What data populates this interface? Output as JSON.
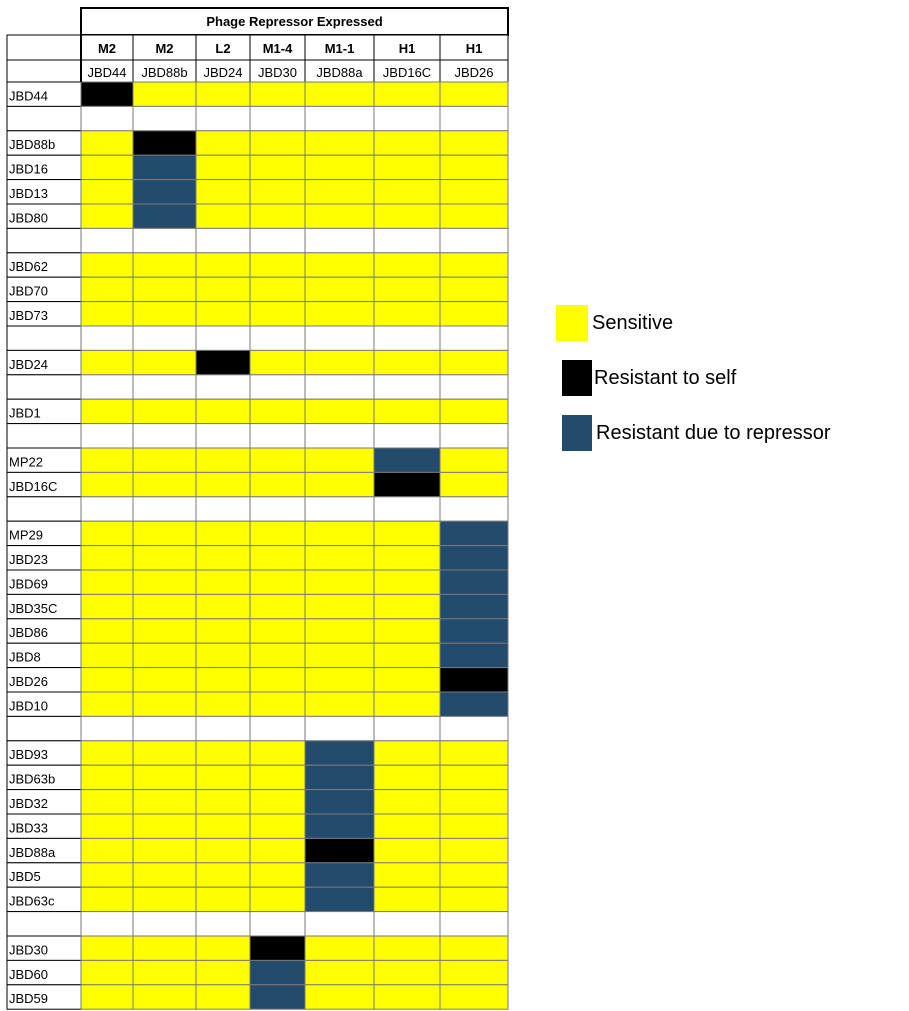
{
  "chart_data": {
    "type": "heatmap",
    "header_title": "Phage Repressor Expressed",
    "column_clusters": [
      "M2",
      "M2",
      "L2",
      "M1-4",
      "M1-1",
      "H1",
      "H1"
    ],
    "columns": [
      "JBD44",
      "JBD88b",
      "JBD24",
      "JBD30",
      "JBD88a",
      "JBD16C",
      "JBD26"
    ],
    "state_colors": {
      "S": "#FFFF00",
      "K": "#000000",
      "B": "#234B6E",
      "E": "#FFFFFF"
    },
    "rows": [
      {
        "label": "JBD44",
        "cells": [
          "K",
          "S",
          "S",
          "S",
          "S",
          "S",
          "S"
        ]
      },
      {
        "label": "",
        "cells": [
          "E",
          "E",
          "E",
          "E",
          "E",
          "E",
          "E"
        ]
      },
      {
        "label": "JBD88b",
        "cells": [
          "S",
          "K",
          "S",
          "S",
          "S",
          "S",
          "S"
        ]
      },
      {
        "label": "JBD16",
        "cells": [
          "S",
          "B",
          "S",
          "S",
          "S",
          "S",
          "S"
        ]
      },
      {
        "label": "JBD13",
        "cells": [
          "S",
          "B",
          "S",
          "S",
          "S",
          "S",
          "S"
        ]
      },
      {
        "label": "JBD80",
        "cells": [
          "S",
          "B",
          "S",
          "S",
          "S",
          "S",
          "S"
        ]
      },
      {
        "label": "",
        "cells": [
          "E",
          "E",
          "E",
          "E",
          "E",
          "E",
          "E"
        ]
      },
      {
        "label": "JBD62",
        "cells": [
          "S",
          "S",
          "S",
          "S",
          "S",
          "S",
          "S"
        ]
      },
      {
        "label": "JBD70",
        "cells": [
          "S",
          "S",
          "S",
          "S",
          "S",
          "S",
          "S"
        ]
      },
      {
        "label": "JBD73",
        "cells": [
          "S",
          "S",
          "S",
          "S",
          "S",
          "S",
          "S"
        ]
      },
      {
        "label": "",
        "cells": [
          "E",
          "E",
          "E",
          "E",
          "E",
          "E",
          "E"
        ]
      },
      {
        "label": "JBD24",
        "cells": [
          "S",
          "S",
          "K",
          "S",
          "S",
          "S",
          "S"
        ]
      },
      {
        "label": "",
        "cells": [
          "E",
          "E",
          "E",
          "E",
          "E",
          "E",
          "E"
        ]
      },
      {
        "label": "JBD1",
        "cells": [
          "S",
          "S",
          "S",
          "S",
          "S",
          "S",
          "S"
        ]
      },
      {
        "label": "",
        "cells": [
          "E",
          "E",
          "E",
          "E",
          "E",
          "E",
          "E"
        ]
      },
      {
        "label": "MP22",
        "cells": [
          "S",
          "S",
          "S",
          "S",
          "S",
          "B",
          "S"
        ]
      },
      {
        "label": "JBD16C",
        "cells": [
          "S",
          "S",
          "S",
          "S",
          "S",
          "K",
          "S"
        ]
      },
      {
        "label": "",
        "cells": [
          "E",
          "E",
          "E",
          "E",
          "E",
          "E",
          "E"
        ]
      },
      {
        "label": "MP29",
        "cells": [
          "S",
          "S",
          "S",
          "S",
          "S",
          "S",
          "B"
        ]
      },
      {
        "label": "JBD23",
        "cells": [
          "S",
          "S",
          "S",
          "S",
          "S",
          "S",
          "B"
        ]
      },
      {
        "label": "JBD69",
        "cells": [
          "S",
          "S",
          "S",
          "S",
          "S",
          "S",
          "B"
        ]
      },
      {
        "label": "JBD35C",
        "cells": [
          "S",
          "S",
          "S",
          "S",
          "S",
          "S",
          "B"
        ]
      },
      {
        "label": "JBD86",
        "cells": [
          "S",
          "S",
          "S",
          "S",
          "S",
          "S",
          "B"
        ]
      },
      {
        "label": "JBD8",
        "cells": [
          "S",
          "S",
          "S",
          "S",
          "S",
          "S",
          "B"
        ]
      },
      {
        "label": "JBD26",
        "cells": [
          "S",
          "S",
          "S",
          "S",
          "S",
          "S",
          "K"
        ]
      },
      {
        "label": "JBD10",
        "cells": [
          "S",
          "S",
          "S",
          "S",
          "S",
          "S",
          "B"
        ]
      },
      {
        "label": "",
        "cells": [
          "E",
          "E",
          "E",
          "E",
          "E",
          "E",
          "E"
        ]
      },
      {
        "label": "JBD93",
        "cells": [
          "S",
          "S",
          "S",
          "S",
          "B",
          "S",
          "S"
        ]
      },
      {
        "label": "JBD63b",
        "cells": [
          "S",
          "S",
          "S",
          "S",
          "B",
          "S",
          "S"
        ]
      },
      {
        "label": "JBD32",
        "cells": [
          "S",
          "S",
          "S",
          "S",
          "B",
          "S",
          "S"
        ]
      },
      {
        "label": "JBD33",
        "cells": [
          "S",
          "S",
          "S",
          "S",
          "B",
          "S",
          "S"
        ]
      },
      {
        "label": "JBD88a",
        "cells": [
          "S",
          "S",
          "S",
          "S",
          "K",
          "S",
          "S"
        ]
      },
      {
        "label": "JBD5",
        "cells": [
          "S",
          "S",
          "S",
          "S",
          "B",
          "S",
          "S"
        ]
      },
      {
        "label": "JBD63c",
        "cells": [
          "S",
          "S",
          "S",
          "S",
          "B",
          "S",
          "S"
        ]
      },
      {
        "label": "",
        "cells": [
          "E",
          "E",
          "E",
          "E",
          "E",
          "E",
          "E"
        ]
      },
      {
        "label": "JBD30",
        "cells": [
          "S",
          "S",
          "S",
          "K",
          "S",
          "S",
          "S"
        ]
      },
      {
        "label": "JBD60",
        "cells": [
          "S",
          "S",
          "S",
          "B",
          "S",
          "S",
          "S"
        ]
      },
      {
        "label": "JBD59",
        "cells": [
          "S",
          "S",
          "S",
          "B",
          "S",
          "S",
          "S"
        ]
      }
    ],
    "legend": [
      {
        "label": "Sensitive",
        "state": "S"
      },
      {
        "label": "Resistant to self",
        "state": "K"
      },
      {
        "label": "Resistant due to repressor",
        "state": "B"
      }
    ]
  }
}
